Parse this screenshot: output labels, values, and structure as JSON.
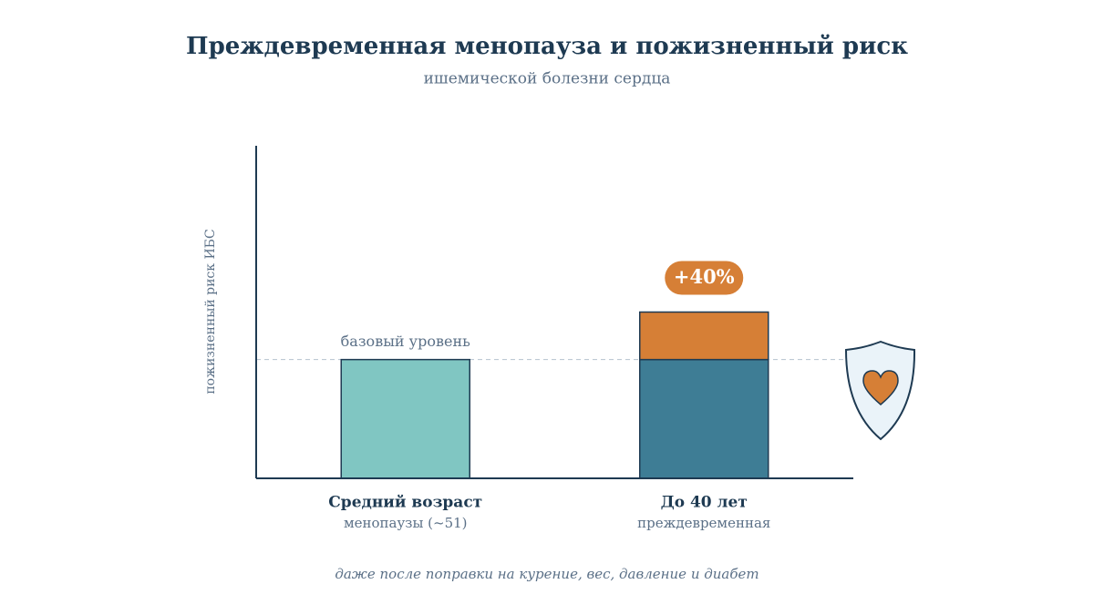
{
  "chart_data": {
    "type": "bar",
    "stacked": true,
    "title": "Преждевременная менопауза и пожизненный риск",
    "subtitle": "ишемической болезни сердца",
    "y_label": "пожизненный риск ИБС",
    "categories": [
      "Средний возраст",
      "До 40 лет"
    ],
    "subcategories": [
      "менопаузы (~51)",
      "преждевременная"
    ],
    "series": [
      {
        "colors": [
          "#80c6c2",
          "#3e7d95"
        ],
        "values": [
          100,
          100
        ]
      },
      {
        "color": "#d67f36",
        "values": [
          null,
          40
        ],
        "value_labels": [
          null,
          "+40%"
        ]
      }
    ],
    "baseline_annotation": "базовый уровень",
    "note": "даже после поправки на курение, вес, давление и диабет",
    "ylim": [
      0,
      280
    ]
  }
}
